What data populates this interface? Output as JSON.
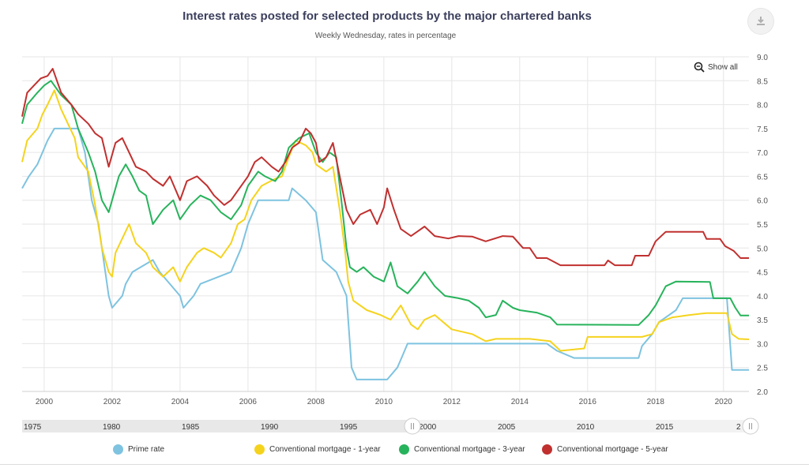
{
  "header": {
    "title": "Interest rates posted for selected products by the major chartered banks",
    "subtitle": "Weekly Wednesday, rates in percentage",
    "show_all_label": "Show all",
    "download_icon": "download-icon"
  },
  "navigator": {
    "labels": [
      "1975",
      "1980",
      "1985",
      "1990",
      "1995",
      "2000",
      "2005",
      "2010",
      "2015",
      "2"
    ]
  },
  "colors": {
    "prime": "#7ec3e0",
    "mortgage1": "#f5d31d",
    "mortgage3": "#27b35b",
    "mortgage5": "#c0302f",
    "grid": "#e6e6e6"
  },
  "chart_data": {
    "type": "line",
    "title": "Interest rates posted for selected products by the major chartered banks",
    "subtitle": "Weekly Wednesday, rates in percentage",
    "xlabel": "",
    "ylabel": "",
    "xlim": [
      1999.35,
      2020.75
    ],
    "ylim": [
      2.0,
      9.0
    ],
    "grid": true,
    "legend_position": "bottom",
    "x_ticks": [
      "2000",
      "2002",
      "2004",
      "2006",
      "2008",
      "2010",
      "2012",
      "2014",
      "2016",
      "2018",
      "2020"
    ],
    "y_ticks": [
      "9.0",
      "8.5",
      "8.0",
      "7.5",
      "7.0",
      "6.5",
      "6.0",
      "5.5",
      "5.0",
      "4.5",
      "4.0",
      "3.5",
      "3.0",
      "2.5",
      "2.0"
    ],
    "series": [
      {
        "name": "Prime rate",
        "points": [
          [
            1999.35,
            6.25
          ],
          [
            1999.55,
            6.5
          ],
          [
            1999.8,
            6.75
          ],
          [
            1999.95,
            7.0
          ],
          [
            2000.1,
            7.25
          ],
          [
            2000.3,
            7.5
          ],
          [
            2001.0,
            7.5
          ],
          [
            2001.2,
            7.0
          ],
          [
            2001.4,
            6.0
          ],
          [
            2001.6,
            5.5
          ],
          [
            2001.8,
            4.5
          ],
          [
            2001.9,
            4.0
          ],
          [
            2002.0,
            3.75
          ],
          [
            2002.3,
            4.0
          ],
          [
            2002.4,
            4.25
          ],
          [
            2002.6,
            4.5
          ],
          [
            2003.2,
            4.75
          ],
          [
            2003.4,
            4.5
          ],
          [
            2004.0,
            4.0
          ],
          [
            2004.1,
            3.75
          ],
          [
            2004.4,
            4.0
          ],
          [
            2004.6,
            4.25
          ],
          [
            2005.5,
            4.5
          ],
          [
            2005.8,
            5.0
          ],
          [
            2006.0,
            5.5
          ],
          [
            2006.3,
            6.0
          ],
          [
            2007.2,
            6.0
          ],
          [
            2007.3,
            6.25
          ],
          [
            2007.7,
            6.0
          ],
          [
            2008.0,
            5.75
          ],
          [
            2008.1,
            5.25
          ],
          [
            2008.2,
            4.75
          ],
          [
            2008.6,
            4.5
          ],
          [
            2008.9,
            4.0
          ],
          [
            2009.0,
            3.0
          ],
          [
            2009.05,
            2.5
          ],
          [
            2009.2,
            2.25
          ],
          [
            2010.1,
            2.25
          ],
          [
            2010.4,
            2.5
          ],
          [
            2010.55,
            2.75
          ],
          [
            2010.7,
            3.0
          ],
          [
            2014.8,
            3.0
          ],
          [
            2015.1,
            2.85
          ],
          [
            2015.6,
            2.7
          ],
          [
            2017.5,
            2.7
          ],
          [
            2017.6,
            2.95
          ],
          [
            2017.9,
            3.2
          ],
          [
            2018.1,
            3.45
          ],
          [
            2018.6,
            3.7
          ],
          [
            2018.8,
            3.95
          ],
          [
            2020.1,
            3.95
          ],
          [
            2020.2,
            2.95
          ],
          [
            2020.25,
            2.45
          ],
          [
            2020.75,
            2.45
          ]
        ]
      },
      {
        "name": "Conventional mortgage - 1-year",
        "points": [
          [
            1999.35,
            6.8
          ],
          [
            1999.5,
            7.25
          ],
          [
            1999.8,
            7.5
          ],
          [
            1999.95,
            7.8
          ],
          [
            2000.1,
            8.0
          ],
          [
            2000.3,
            8.3
          ],
          [
            2000.5,
            7.9
          ],
          [
            2000.7,
            7.6
          ],
          [
            2000.9,
            7.3
          ],
          [
            2001.0,
            6.9
          ],
          [
            2001.3,
            6.6
          ],
          [
            2001.5,
            5.9
          ],
          [
            2001.7,
            5.0
          ],
          [
            2001.9,
            4.5
          ],
          [
            2002.0,
            4.4
          ],
          [
            2002.1,
            4.9
          ],
          [
            2002.3,
            5.2
          ],
          [
            2002.5,
            5.5
          ],
          [
            2002.7,
            5.1
          ],
          [
            2003.0,
            4.9
          ],
          [
            2003.2,
            4.6
          ],
          [
            2003.5,
            4.4
          ],
          [
            2003.8,
            4.6
          ],
          [
            2004.0,
            4.3
          ],
          [
            2004.2,
            4.6
          ],
          [
            2004.5,
            4.9
          ],
          [
            2004.7,
            5.0
          ],
          [
            2005.0,
            4.9
          ],
          [
            2005.2,
            4.8
          ],
          [
            2005.5,
            5.1
          ],
          [
            2005.7,
            5.5
          ],
          [
            2005.9,
            5.6
          ],
          [
            2006.1,
            6.0
          ],
          [
            2006.4,
            6.3
          ],
          [
            2006.8,
            6.45
          ],
          [
            2007.0,
            6.5
          ],
          [
            2007.2,
            6.9
          ],
          [
            2007.4,
            7.25
          ],
          [
            2007.7,
            7.15
          ],
          [
            2007.9,
            7.0
          ],
          [
            2008.0,
            6.75
          ],
          [
            2008.3,
            6.6
          ],
          [
            2008.5,
            6.7
          ],
          [
            2008.7,
            5.8
          ],
          [
            2008.85,
            5.0
          ],
          [
            2008.95,
            4.3
          ],
          [
            2009.1,
            3.9
          ],
          [
            2009.5,
            3.7
          ],
          [
            2009.9,
            3.6
          ],
          [
            2010.2,
            3.5
          ],
          [
            2010.5,
            3.8
          ],
          [
            2010.8,
            3.4
          ],
          [
            2011.0,
            3.3
          ],
          [
            2011.2,
            3.5
          ],
          [
            2011.5,
            3.6
          ],
          [
            2012.0,
            3.3
          ],
          [
            2012.6,
            3.2
          ],
          [
            2013.0,
            3.05
          ],
          [
            2013.3,
            3.1
          ],
          [
            2014.3,
            3.1
          ],
          [
            2014.9,
            3.05
          ],
          [
            2015.2,
            2.85
          ],
          [
            2015.9,
            2.9
          ],
          [
            2016.0,
            3.14
          ],
          [
            2017.6,
            3.14
          ],
          [
            2017.9,
            3.2
          ],
          [
            2018.1,
            3.45
          ],
          [
            2018.5,
            3.55
          ],
          [
            2019.0,
            3.6
          ],
          [
            2019.5,
            3.64
          ],
          [
            2020.1,
            3.64
          ],
          [
            2020.25,
            3.2
          ],
          [
            2020.45,
            3.1
          ],
          [
            2020.75,
            3.09
          ]
        ]
      },
      {
        "name": "Conventional mortgage - 3-year",
        "points": [
          [
            1999.35,
            7.6
          ],
          [
            1999.5,
            8.0
          ],
          [
            1999.8,
            8.25
          ],
          [
            2000.0,
            8.4
          ],
          [
            2000.2,
            8.5
          ],
          [
            2000.5,
            8.2
          ],
          [
            2000.8,
            8.0
          ],
          [
            2001.0,
            7.5
          ],
          [
            2001.3,
            7.0
          ],
          [
            2001.5,
            6.6
          ],
          [
            2001.7,
            6.0
          ],
          [
            2001.9,
            5.75
          ],
          [
            2002.0,
            6.0
          ],
          [
            2002.2,
            6.5
          ],
          [
            2002.4,
            6.75
          ],
          [
            2002.6,
            6.5
          ],
          [
            2002.8,
            6.2
          ],
          [
            2003.0,
            6.1
          ],
          [
            2003.2,
            5.5
          ],
          [
            2003.5,
            5.8
          ],
          [
            2003.8,
            6.0
          ],
          [
            2004.0,
            5.6
          ],
          [
            2004.3,
            5.9
          ],
          [
            2004.6,
            6.1
          ],
          [
            2004.9,
            6.0
          ],
          [
            2005.2,
            5.75
          ],
          [
            2005.5,
            5.6
          ],
          [
            2005.8,
            5.9
          ],
          [
            2006.0,
            6.3
          ],
          [
            2006.3,
            6.6
          ],
          [
            2006.5,
            6.5
          ],
          [
            2006.8,
            6.4
          ],
          [
            2007.0,
            6.6
          ],
          [
            2007.2,
            7.1
          ],
          [
            2007.5,
            7.3
          ],
          [
            2007.8,
            7.4
          ],
          [
            2008.0,
            7.0
          ],
          [
            2008.2,
            6.8
          ],
          [
            2008.4,
            7.0
          ],
          [
            2008.6,
            6.9
          ],
          [
            2008.75,
            6.0
          ],
          [
            2008.9,
            5.0
          ],
          [
            2009.0,
            4.6
          ],
          [
            2009.2,
            4.5
          ],
          [
            2009.4,
            4.6
          ],
          [
            2009.7,
            4.4
          ],
          [
            2010.0,
            4.3
          ],
          [
            2010.2,
            4.7
          ],
          [
            2010.4,
            4.2
          ],
          [
            2010.7,
            4.05
          ],
          [
            2011.0,
            4.3
          ],
          [
            2011.2,
            4.5
          ],
          [
            2011.5,
            4.2
          ],
          [
            2011.8,
            4.0
          ],
          [
            2012.2,
            3.95
          ],
          [
            2012.5,
            3.9
          ],
          [
            2012.8,
            3.75
          ],
          [
            2013.0,
            3.55
          ],
          [
            2013.3,
            3.6
          ],
          [
            2013.5,
            3.9
          ],
          [
            2013.8,
            3.75
          ],
          [
            2014.0,
            3.7
          ],
          [
            2014.5,
            3.65
          ],
          [
            2014.9,
            3.55
          ],
          [
            2015.1,
            3.4
          ],
          [
            2017.5,
            3.39
          ],
          [
            2017.8,
            3.6
          ],
          [
            2018.0,
            3.8
          ],
          [
            2018.3,
            4.2
          ],
          [
            2018.6,
            4.3
          ],
          [
            2019.6,
            4.29
          ],
          [
            2019.7,
            3.95
          ],
          [
            2020.2,
            3.95
          ],
          [
            2020.35,
            3.75
          ],
          [
            2020.5,
            3.59
          ],
          [
            2020.75,
            3.59
          ]
        ]
      },
      {
        "name": "Conventional mortgage - 5-year",
        "points": [
          [
            1999.35,
            7.75
          ],
          [
            1999.5,
            8.25
          ],
          [
            1999.7,
            8.4
          ],
          [
            1999.9,
            8.55
          ],
          [
            2000.1,
            8.6
          ],
          [
            2000.25,
            8.75
          ],
          [
            2000.5,
            8.25
          ],
          [
            2000.8,
            8.0
          ],
          [
            2001.0,
            7.8
          ],
          [
            2001.3,
            7.6
          ],
          [
            2001.5,
            7.4
          ],
          [
            2001.7,
            7.3
          ],
          [
            2001.9,
            6.7
          ],
          [
            2002.1,
            7.2
          ],
          [
            2002.3,
            7.3
          ],
          [
            2002.5,
            7.0
          ],
          [
            2002.7,
            6.7
          ],
          [
            2003.0,
            6.6
          ],
          [
            2003.2,
            6.45
          ],
          [
            2003.5,
            6.3
          ],
          [
            2003.7,
            6.5
          ],
          [
            2004.0,
            6.0
          ],
          [
            2004.2,
            6.4
          ],
          [
            2004.5,
            6.5
          ],
          [
            2004.8,
            6.3
          ],
          [
            2005.0,
            6.1
          ],
          [
            2005.3,
            5.9
          ],
          [
            2005.5,
            6.0
          ],
          [
            2005.7,
            6.2
          ],
          [
            2006.0,
            6.5
          ],
          [
            2006.2,
            6.8
          ],
          [
            2006.4,
            6.9
          ],
          [
            2006.7,
            6.7
          ],
          [
            2006.9,
            6.6
          ],
          [
            2007.1,
            6.8
          ],
          [
            2007.3,
            7.1
          ],
          [
            2007.5,
            7.2
          ],
          [
            2007.7,
            7.5
          ],
          [
            2007.85,
            7.4
          ],
          [
            2008.0,
            7.2
          ],
          [
            2008.1,
            6.8
          ],
          [
            2008.3,
            6.9
          ],
          [
            2008.5,
            7.2
          ],
          [
            2008.7,
            6.5
          ],
          [
            2008.9,
            5.8
          ],
          [
            2009.1,
            5.5
          ],
          [
            2009.3,
            5.7
          ],
          [
            2009.6,
            5.8
          ],
          [
            2009.8,
            5.5
          ],
          [
            2010.0,
            5.85
          ],
          [
            2010.1,
            6.25
          ],
          [
            2010.3,
            5.8
          ],
          [
            2010.5,
            5.4
          ],
          [
            2010.8,
            5.25
          ],
          [
            2011.0,
            5.35
          ],
          [
            2011.2,
            5.45
          ],
          [
            2011.5,
            5.25
          ],
          [
            2011.9,
            5.2
          ],
          [
            2012.2,
            5.25
          ],
          [
            2012.6,
            5.24
          ],
          [
            2013.0,
            5.14
          ],
          [
            2013.5,
            5.25
          ],
          [
            2013.8,
            5.24
          ],
          [
            2014.1,
            5.0
          ],
          [
            2014.3,
            5.0
          ],
          [
            2014.5,
            4.79
          ],
          [
            2014.8,
            4.79
          ],
          [
            2015.2,
            4.64
          ],
          [
            2016.5,
            4.64
          ],
          [
            2016.6,
            4.74
          ],
          [
            2016.8,
            4.64
          ],
          [
            2017.3,
            4.64
          ],
          [
            2017.4,
            4.84
          ],
          [
            2017.8,
            4.84
          ],
          [
            2018.0,
            5.14
          ],
          [
            2018.3,
            5.34
          ],
          [
            2019.4,
            5.34
          ],
          [
            2019.5,
            5.19
          ],
          [
            2019.9,
            5.19
          ],
          [
            2020.05,
            5.04
          ],
          [
            2020.3,
            4.94
          ],
          [
            2020.5,
            4.79
          ],
          [
            2020.75,
            4.79
          ]
        ]
      }
    ]
  }
}
